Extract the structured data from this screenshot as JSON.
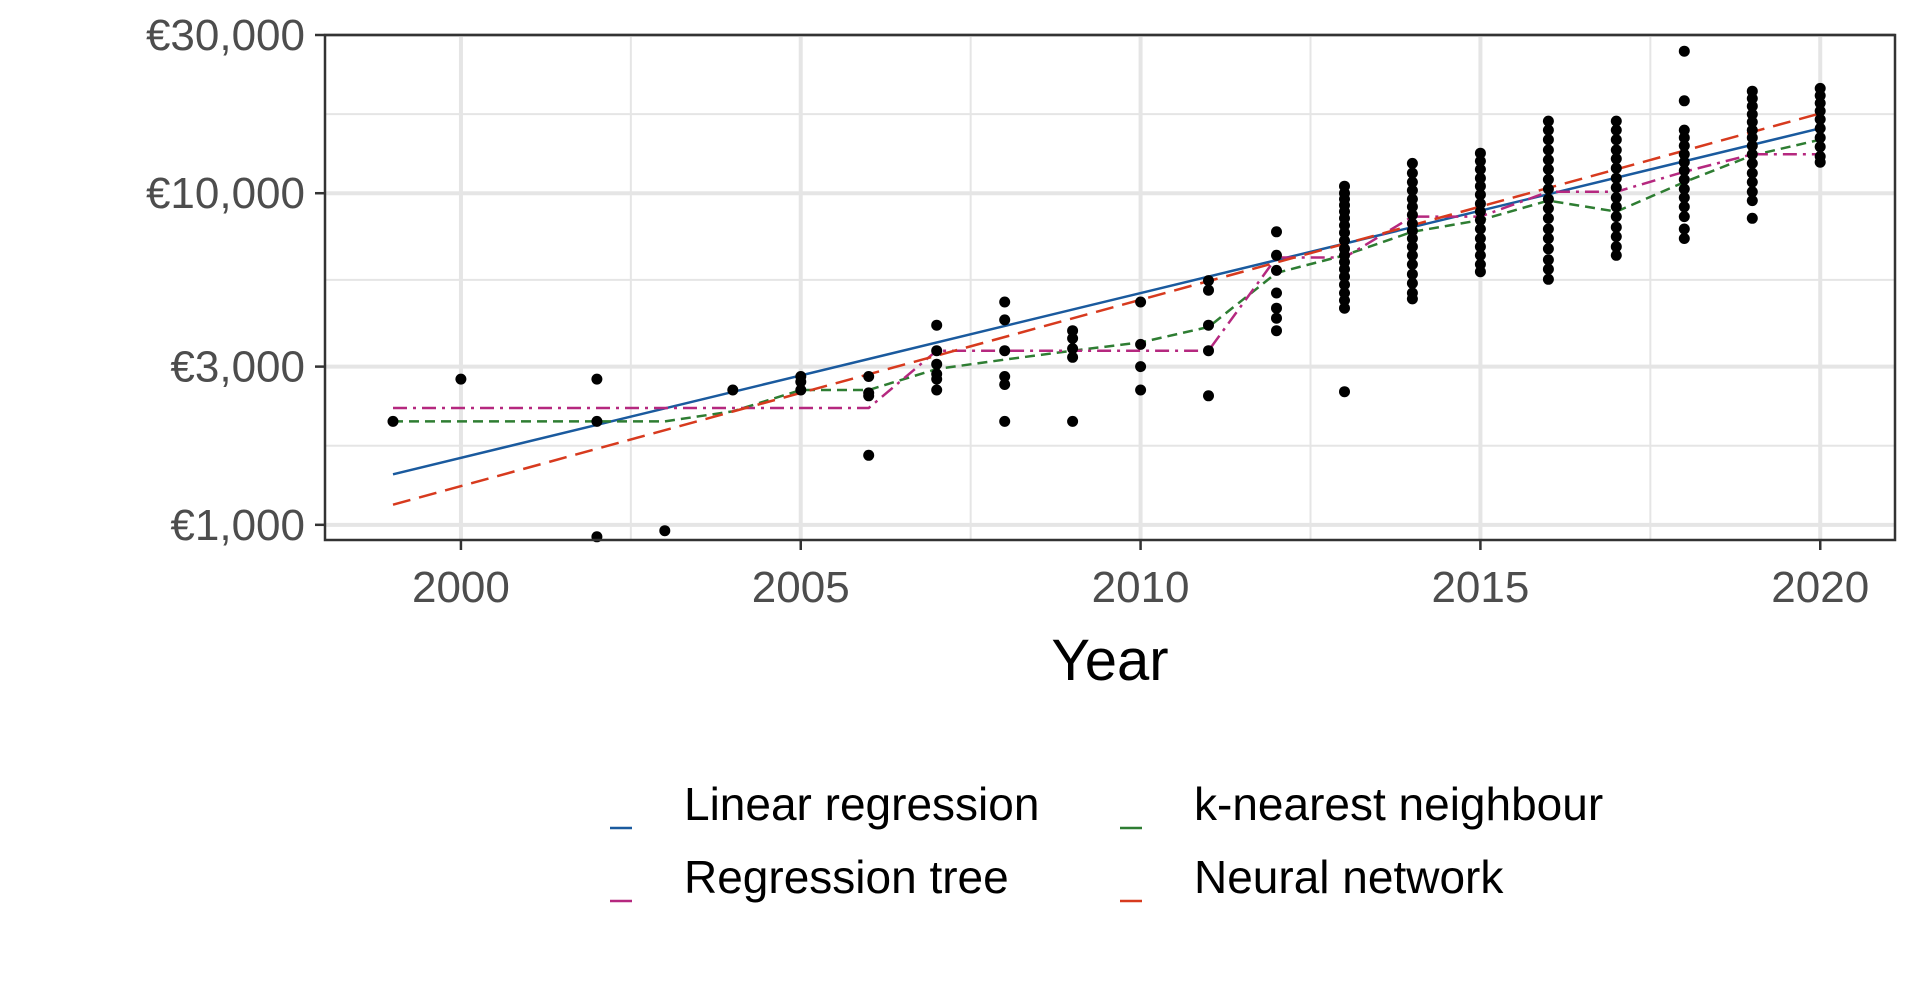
{
  "chart_data": {
    "type": "scatter",
    "title": "",
    "xlabel": "Year",
    "ylabel": "",
    "xlim": [
      1998,
      2021.1
    ],
    "ylim": [
      900,
      30000
    ],
    "y_scale": "log",
    "x_ticks": [
      2000,
      2005,
      2010,
      2015,
      2020
    ],
    "x_tick_labels": [
      "2000",
      "2005",
      "2010",
      "2015",
      "2020"
    ],
    "y_ticks": [
      1000,
      3000,
      10000,
      30000
    ],
    "y_tick_labels": [
      "€1,000",
      "€3,000",
      "€10,000",
      "€30,000"
    ],
    "grid": true,
    "legend_position": "bottom",
    "colors": {
      "points": "#000000",
      "linear_regression": "#1a5a9e",
      "knn": "#2e7d32",
      "regression_tree": "#b5287f",
      "neural_network": "#d73a1e",
      "grid": "#e5e5e5",
      "panel_border": "#333333"
    },
    "points": [
      [
        1999,
        2050
      ],
      [
        2000,
        2750
      ],
      [
        2002,
        2750
      ],
      [
        2002,
        2050
      ],
      [
        2002,
        920
      ],
      [
        2003,
        960
      ],
      [
        2004,
        2550
      ],
      [
        2005,
        2800
      ],
      [
        2005,
        2700
      ],
      [
        2005,
        2550
      ],
      [
        2006,
        2800
      ],
      [
        2006,
        2500
      ],
      [
        2006,
        2450
      ],
      [
        2006,
        1620
      ],
      [
        2007,
        4000
      ],
      [
        2007,
        3350
      ],
      [
        2007,
        3050
      ],
      [
        2007,
        2850
      ],
      [
        2007,
        2750
      ],
      [
        2007,
        2550
      ],
      [
        2008,
        4700
      ],
      [
        2008,
        4150
      ],
      [
        2008,
        3350
      ],
      [
        2008,
        2800
      ],
      [
        2008,
        2650
      ],
      [
        2008,
        2050
      ],
      [
        2009,
        3850
      ],
      [
        2009,
        3650
      ],
      [
        2009,
        3400
      ],
      [
        2009,
        3200
      ],
      [
        2009,
        2050
      ],
      [
        2010,
        4700
      ],
      [
        2010,
        3500
      ],
      [
        2010,
        3000
      ],
      [
        2010,
        2550
      ],
      [
        2011,
        5450
      ],
      [
        2011,
        5100
      ],
      [
        2011,
        4000
      ],
      [
        2011,
        3350
      ],
      [
        2011,
        2450
      ],
      [
        2012,
        7650
      ],
      [
        2012,
        6500
      ],
      [
        2012,
        5850
      ],
      [
        2012,
        5000
      ],
      [
        2012,
        4500
      ],
      [
        2012,
        4200
      ],
      [
        2012,
        3850
      ],
      [
        2013,
        10500
      ],
      [
        2013,
        10000
      ],
      [
        2013,
        9600
      ],
      [
        2013,
        9200
      ],
      [
        2013,
        8800
      ],
      [
        2013,
        8400
      ],
      [
        2013,
        8000
      ],
      [
        2013,
        7600
      ],
      [
        2013,
        7200
      ],
      [
        2013,
        6800
      ],
      [
        2013,
        6500
      ],
      [
        2013,
        6200
      ],
      [
        2013,
        5900
      ],
      [
        2013,
        5600
      ],
      [
        2013,
        5300
      ],
      [
        2013,
        5000
      ],
      [
        2013,
        4750
      ],
      [
        2013,
        4500
      ],
      [
        2013,
        2520
      ],
      [
        2014,
        12300
      ],
      [
        2014,
        11500
      ],
      [
        2014,
        10800
      ],
      [
        2014,
        10200
      ],
      [
        2014,
        9600
      ],
      [
        2014,
        9100
      ],
      [
        2014,
        8600
      ],
      [
        2014,
        8100
      ],
      [
        2014,
        7700
      ],
      [
        2014,
        7300
      ],
      [
        2014,
        6900
      ],
      [
        2014,
        6500
      ],
      [
        2014,
        6100
      ],
      [
        2014,
        5700
      ],
      [
        2014,
        5350
      ],
      [
        2014,
        5000
      ],
      [
        2014,
        4800
      ],
      [
        2015,
        13200
      ],
      [
        2015,
        12500
      ],
      [
        2015,
        11800
      ],
      [
        2015,
        11100
      ],
      [
        2015,
        10500
      ],
      [
        2015,
        9900
      ],
      [
        2015,
        9300
      ],
      [
        2015,
        8800
      ],
      [
        2015,
        8300
      ],
      [
        2015,
        7800
      ],
      [
        2015,
        7300
      ],
      [
        2015,
        6900
      ],
      [
        2015,
        6500
      ],
      [
        2015,
        6100
      ],
      [
        2015,
        5800
      ],
      [
        2016,
        16500
      ],
      [
        2016,
        15500
      ],
      [
        2016,
        14500
      ],
      [
        2016,
        13500
      ],
      [
        2016,
        12600
      ],
      [
        2016,
        11800
      ],
      [
        2016,
        11000
      ],
      [
        2016,
        10300
      ],
      [
        2016,
        9600
      ],
      [
        2016,
        9000
      ],
      [
        2016,
        8400
      ],
      [
        2016,
        7800
      ],
      [
        2016,
        7300
      ],
      [
        2016,
        6800
      ],
      [
        2016,
        6300
      ],
      [
        2016,
        5900
      ],
      [
        2016,
        5500
      ],
      [
        2017,
        16500
      ],
      [
        2017,
        15500
      ],
      [
        2017,
        14500
      ],
      [
        2017,
        13500
      ],
      [
        2017,
        12700
      ],
      [
        2017,
        11900
      ],
      [
        2017,
        11100
      ],
      [
        2017,
        10400
      ],
      [
        2017,
        9700
      ],
      [
        2017,
        9100
      ],
      [
        2017,
        8500
      ],
      [
        2017,
        7900
      ],
      [
        2017,
        7400
      ],
      [
        2017,
        6900
      ],
      [
        2017,
        6500
      ],
      [
        2018,
        26800
      ],
      [
        2018,
        19000
      ],
      [
        2018,
        15500
      ],
      [
        2018,
        14700
      ],
      [
        2018,
        13900
      ],
      [
        2018,
        13100
      ],
      [
        2018,
        12400
      ],
      [
        2018,
        11700
      ],
      [
        2018,
        11000
      ],
      [
        2018,
        10300
      ],
      [
        2018,
        9700
      ],
      [
        2018,
        9100
      ],
      [
        2018,
        8500
      ],
      [
        2018,
        7800
      ],
      [
        2018,
        7300
      ],
      [
        2019,
        20300
      ],
      [
        2019,
        19300
      ],
      [
        2019,
        18300
      ],
      [
        2019,
        17300
      ],
      [
        2019,
        16400
      ],
      [
        2019,
        15500
      ],
      [
        2019,
        14700
      ],
      [
        2019,
        13900
      ],
      [
        2019,
        13100
      ],
      [
        2019,
        12300
      ],
      [
        2019,
        11500
      ],
      [
        2019,
        10800
      ],
      [
        2019,
        10100
      ],
      [
        2019,
        9500
      ],
      [
        2019,
        8400
      ],
      [
        2020,
        20700
      ],
      [
        2020,
        19700
      ],
      [
        2020,
        18700
      ],
      [
        2020,
        17700
      ],
      [
        2020,
        16700
      ],
      [
        2020,
        15700
      ],
      [
        2020,
        14700
      ],
      [
        2020,
        13800
      ],
      [
        2020,
        12900
      ],
      [
        2020,
        12400
      ]
    ],
    "series": [
      {
        "name": "Linear regression",
        "color": "#1a5a9e",
        "dash": "solid",
        "x": [
          1999,
          2020
        ],
        "y": [
          1420,
          15700
        ]
      },
      {
        "name": "k-nearest neighbour",
        "color": "#2e7d32",
        "dash": "short-dash",
        "x": [
          1999,
          2000,
          2001,
          2002,
          2003,
          2004,
          2005,
          2006,
          2007,
          2008,
          2009,
          2010,
          2011,
          2012,
          2013,
          2014,
          2015,
          2016,
          2017,
          2018,
          2019,
          2020
        ],
        "y": [
          2050,
          2050,
          2050,
          2050,
          2050,
          2200,
          2550,
          2550,
          2950,
          3150,
          3350,
          3550,
          3950,
          5750,
          6500,
          7650,
          8300,
          9500,
          8800,
          10800,
          13000,
          14500
        ]
      },
      {
        "name": "Regression tree",
        "color": "#b5287f",
        "dash": "dash-dot",
        "x": [
          1999,
          2006,
          2007,
          2011,
          2012,
          2013,
          2014,
          2015,
          2016,
          2017,
          2018,
          2019,
          2020
        ],
        "y": [
          2250,
          2250,
          3350,
          3350,
          6400,
          6400,
          8500,
          8500,
          10100,
          10100,
          11600,
          13100,
          13100
        ]
      },
      {
        "name": "Neural network",
        "color": "#d73a1e",
        "dash": "long-dash",
        "x": [
          1999,
          2020
        ],
        "y": [
          1150,
          17400
        ]
      }
    ],
    "legend": {
      "entries": [
        "Linear regression",
        "k-nearest neighbour",
        "Regression tree",
        "Neural network"
      ],
      "columns": 2
    }
  }
}
